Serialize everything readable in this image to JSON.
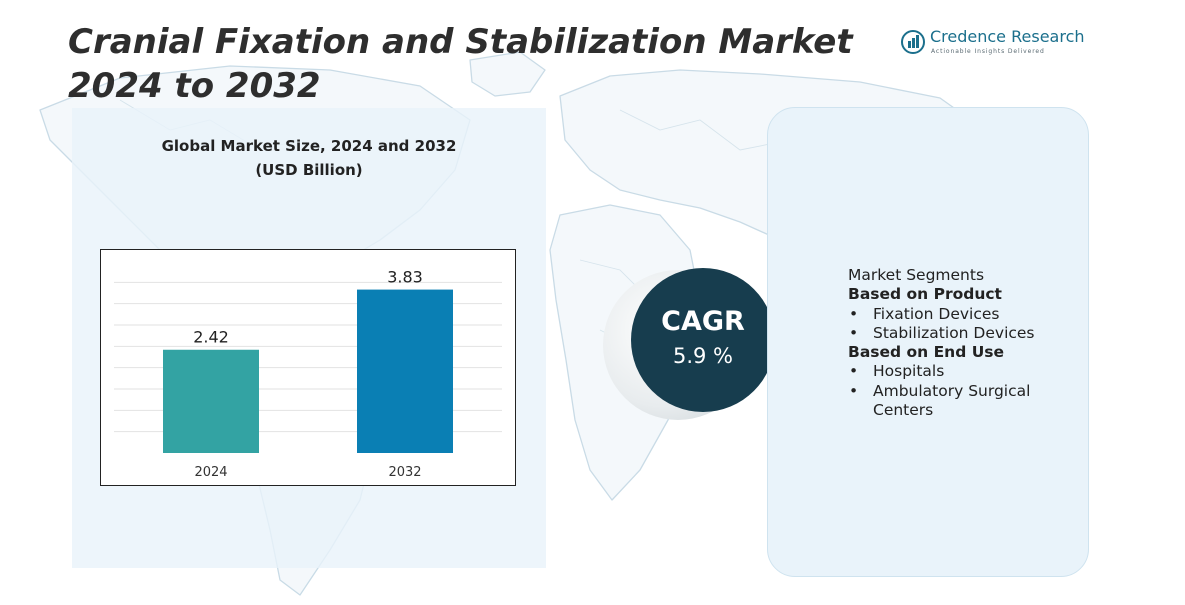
{
  "title": "Cranial Fixation and Stabilization Market 2024 to 2032",
  "logo": {
    "name": "Credence Research",
    "tagline": "Actionable Insights Delivered",
    "icon": "bar-chart-circle-icon"
  },
  "chart": {
    "title": "Global Market Size,  2024 and 2032",
    "unit": "(USD Billion)"
  },
  "chart_data": {
    "type": "bar",
    "title": "Global Market Size,  2024 and 2032",
    "ylabel": "(USD Billion)",
    "xlabel": "",
    "categories": [
      "2024",
      "2032"
    ],
    "values": [
      2.42,
      3.83
    ],
    "data_labels": [
      "2.42",
      "3.83"
    ],
    "colors": [
      "#33a3a3",
      "#0a7fb4"
    ],
    "ylim": [
      0,
      4.5
    ],
    "grid": true,
    "legend": "none"
  },
  "cagr": {
    "label": "CAGR",
    "value": "5.9 %"
  },
  "segments": {
    "heading": "Market Segments",
    "groups": [
      {
        "title": "Based on Product",
        "items": [
          "Fixation Devices",
          "Stabilization Devices"
        ]
      },
      {
        "title": "Based on End Use",
        "items": [
          "Hospitals",
          "Ambulatory Surgical Centers"
        ]
      }
    ]
  },
  "colors": {
    "title_text": "#2e2e2e",
    "cagr_circle": "#173d4e",
    "panel_bg": "#e9f3fa",
    "map_lines": "#c9dbe6",
    "brand": "#1b6f8c"
  }
}
